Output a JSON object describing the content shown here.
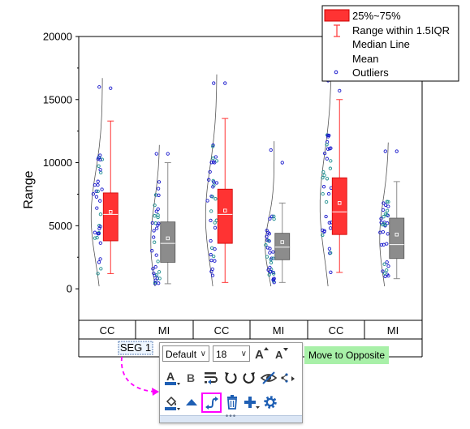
{
  "chart_data": {
    "type": "box",
    "ylabel": "Range",
    "ylim": [
      -2500,
      20000
    ],
    "yticks": [
      0,
      5000,
      10000,
      15000,
      20000
    ],
    "categories": [
      "CC",
      "MI",
      "CC",
      "MI",
      "CC",
      "MI"
    ],
    "groups": [
      "SEG 1"
    ],
    "box_colors": [
      "#ff3333",
      "#8c8c8c",
      "#ff3333",
      "#8c8c8c",
      "#ff3333",
      "#8c8c8c"
    ],
    "boxes": [
      {
        "category": "CC",
        "whisker_low": 1200,
        "q1": 3800,
        "median": 5900,
        "mean": 6100,
        "q3": 7600,
        "whisker_high": 13300
      },
      {
        "category": "MI",
        "whisker_low": 400,
        "q1": 2100,
        "median": 3600,
        "mean": 4000,
        "q3": 5300,
        "whisker_high": 10000
      },
      {
        "category": "CC",
        "whisker_low": 500,
        "q1": 3600,
        "median": 5900,
        "mean": 6200,
        "q3": 7900,
        "whisker_high": 13500
      },
      {
        "category": "MI",
        "whisker_low": 500,
        "q1": 2300,
        "median": 3300,
        "mean": 3700,
        "q3": 4400,
        "whisker_high": 6800
      },
      {
        "category": "CC",
        "whisker_low": 1300,
        "q1": 4300,
        "median": 6100,
        "mean": 6800,
        "q3": 8800,
        "whisker_high": 15000
      },
      {
        "category": "MI",
        "whisker_low": 800,
        "q1": 2400,
        "median": 3500,
        "mean": 4300,
        "q3": 5600,
        "whisker_high": 8500
      }
    ],
    "outliers": [
      [
        16000,
        15900
      ],
      [
        10700,
        10700
      ],
      [
        16300,
        16300
      ],
      [
        11000,
        10000
      ],
      [
        16500,
        15700
      ],
      [
        10900,
        10900
      ]
    ],
    "legend": {
      "position": "top-right",
      "entries": [
        "25%~75%",
        "Range within 1.5IQR",
        "Median Line",
        "Mean",
        "Outliers"
      ]
    },
    "grid": false
  },
  "toolbar": {
    "font_value": "Default",
    "size_value": "18",
    "tooltip": "Move to Opposite"
  },
  "colors": {
    "cc_box": "#ff3333",
    "mi_box": "#8c8c8c",
    "point": "#1a1acc",
    "point_alt": "#1f8f8f",
    "annotation": "#ff00ff",
    "tooltip_bg": "#a8f0a8"
  }
}
